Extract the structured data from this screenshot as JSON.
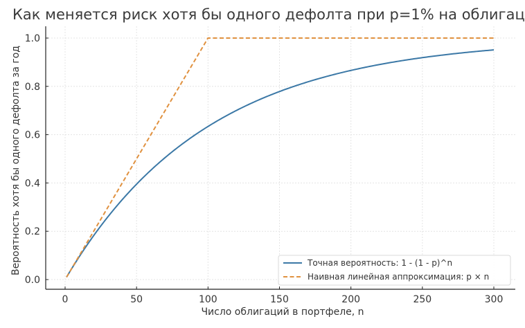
{
  "chart_data": {
    "type": "line",
    "title": "Как меняется риск хотя бы одного дефолта при p=1% на облигац",
    "xlabel": "Число облигаций в портфеле, n",
    "ylabel": "Вероятность хотя бы одного дефолта за год",
    "xlim": [
      -14,
      315
    ],
    "ylim": [
      -0.04,
      1.05
    ],
    "x_ticks": [
      0,
      50,
      100,
      150,
      200,
      250,
      300
    ],
    "x_tick_labels": [
      "0",
      "50",
      "100",
      "150",
      "200",
      "250",
      "300"
    ],
    "y_ticks": [
      0.0,
      0.2,
      0.4,
      0.6,
      0.8,
      1.0
    ],
    "y_tick_labels": [
      "0.0",
      "0.2",
      "0.4",
      "0.6",
      "0.8",
      "1.0"
    ],
    "grid": true,
    "legend_position": "lower right",
    "p": 0.01,
    "series": [
      {
        "name": "Точная вероятность: 1 - (1 - p)^n",
        "style": "solid",
        "color": "#3b78a6",
        "x": [
          1,
          10,
          20,
          30,
          40,
          50,
          60,
          70,
          80,
          90,
          100,
          125,
          150,
          175,
          200,
          225,
          250,
          275,
          300
        ],
        "values": [
          0.01,
          0.096,
          0.182,
          0.26,
          0.331,
          0.395,
          0.453,
          0.505,
          0.552,
          0.595,
          0.634,
          0.715,
          0.779,
          0.828,
          0.866,
          0.896,
          0.919,
          0.937,
          0.951
        ]
      },
      {
        "name": "Наивная линейная аппроксимация: p × n",
        "style": "dashed",
        "color": "#e0913f",
        "x": [
          1,
          100,
          300
        ],
        "values": [
          0.01,
          1.0,
          1.0
        ]
      }
    ]
  }
}
